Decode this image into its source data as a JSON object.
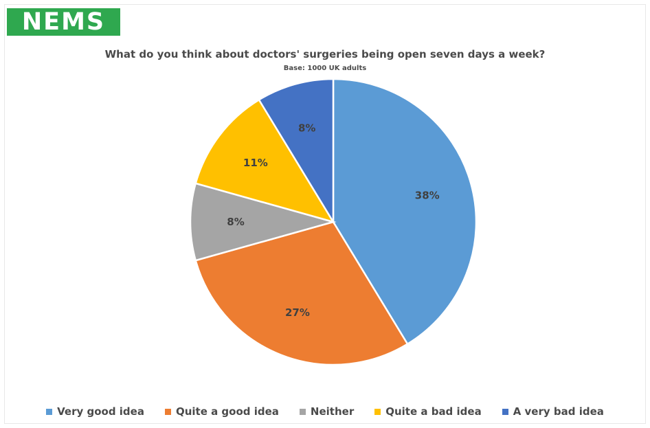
{
  "logo": {
    "text": "NEMS",
    "color": "#2fa84f"
  },
  "chart_data": {
    "type": "pie",
    "title": "What do you think about doctors' surgeries being open seven days a week?",
    "subtitle": "Base: 1000 UK adults",
    "legend_position": "bottom",
    "slices": [
      {
        "label": "Very good idea",
        "value": 38,
        "display": "38%",
        "color": "#5b9bd5"
      },
      {
        "label": "Quite a good idea",
        "value": 27,
        "display": "27%",
        "color": "#ed7d31"
      },
      {
        "label": "Neither",
        "value": 8,
        "display": "8%",
        "color": "#a5a5a5"
      },
      {
        "label": "Quite a bad idea",
        "value": 11,
        "display": "11%",
        "color": "#ffc000"
      },
      {
        "label": "A very bad idea",
        "value": 8,
        "display": "8%",
        "color": "#4472c4"
      }
    ]
  }
}
